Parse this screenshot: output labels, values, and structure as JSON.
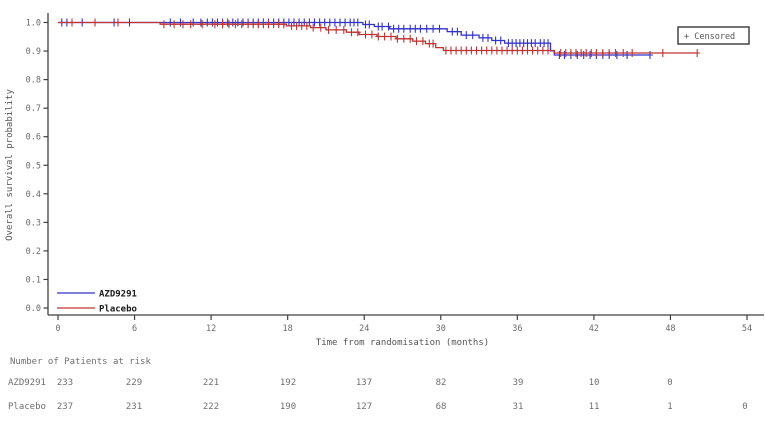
{
  "colors": {
    "azd9291": "#3333cc",
    "placebo": "#c03333",
    "axis": "#404040",
    "tick_text": "#6b6b6b",
    "risk_text": "#6f6f6f",
    "legend_text": "#1a1a1a",
    "censor_box_border": "#444444"
  },
  "chart_data": {
    "type": "line",
    "subtype": "kaplan-meier-step",
    "title": "",
    "xlabel": "Time from randomisation (months)",
    "ylabel": "Overall survival probability",
    "xlim": [
      0,
      54
    ],
    "xticks": [
      0,
      6,
      12,
      18,
      24,
      30,
      36,
      42,
      48,
      54
    ],
    "ylim": [
      0.0,
      1.0
    ],
    "yticks": [
      0.0,
      0.1,
      0.2,
      0.3,
      0.4,
      0.5,
      0.6,
      0.7,
      0.8,
      0.9,
      1.0
    ],
    "grid": false,
    "legend_position": "inside-bottom-left",
    "censored_marker_label": "+ Censored",
    "series": [
      {
        "name": "AZD9291",
        "color": "#3333cc",
        "steps": [
          [
            0,
            1.0
          ],
          [
            23.9,
            1.0
          ],
          [
            23.9,
            0.993
          ],
          [
            24.8,
            0.993
          ],
          [
            24.8,
            0.986
          ],
          [
            26.0,
            0.986
          ],
          [
            26.0,
            0.978
          ],
          [
            30.5,
            0.978
          ],
          [
            30.5,
            0.968
          ],
          [
            31.6,
            0.968
          ],
          [
            31.6,
            0.956
          ],
          [
            33.0,
            0.956
          ],
          [
            33.0,
            0.946
          ],
          [
            34.0,
            0.946
          ],
          [
            34.0,
            0.937
          ],
          [
            35.0,
            0.937
          ],
          [
            35.0,
            0.928
          ],
          [
            38.6,
            0.928
          ],
          [
            38.6,
            0.901
          ],
          [
            38.9,
            0.901
          ],
          [
            38.9,
            0.886
          ],
          [
            46.4,
            0.886
          ]
        ],
        "censor_months": [
          0.3,
          0.7,
          1.9,
          4.4,
          5.6,
          8.8,
          9.6,
          10.6,
          11.2,
          11.7,
          12.1,
          12.5,
          12.9,
          13.3,
          13.7,
          14.1,
          14.5,
          14.9,
          15.3,
          15.7,
          16.1,
          16.5,
          16.9,
          17.3,
          17.7,
          18.1,
          18.5,
          18.9,
          19.3,
          19.7,
          20.1,
          20.5,
          20.9,
          21.3,
          21.7,
          22.1,
          22.5,
          22.9,
          23.2,
          23.5,
          24.1,
          24.4,
          25.1,
          25.4,
          25.9,
          26.3,
          26.7,
          27.1,
          27.6,
          28.0,
          28.4,
          28.9,
          29.4,
          29.9,
          30.9,
          31.3,
          32.0,
          32.5,
          33.3,
          33.7,
          34.3,
          34.7,
          35.3,
          35.6,
          35.9,
          36.2,
          36.5,
          36.8,
          37.1,
          37.4,
          37.8,
          38.1,
          38.4,
          39.3,
          39.7,
          40.2,
          40.7,
          41.2,
          41.7,
          42.2,
          42.7,
          43.2,
          43.8,
          44.6,
          46.4
        ]
      },
      {
        "name": "Placebo",
        "color": "#c03333",
        "steps": [
          [
            0,
            1.0
          ],
          [
            8.0,
            1.0
          ],
          [
            8.0,
            0.994
          ],
          [
            17.9,
            0.994
          ],
          [
            17.9,
            0.988
          ],
          [
            19.8,
            0.988
          ],
          [
            19.8,
            0.982
          ],
          [
            21.0,
            0.982
          ],
          [
            21.0,
            0.974
          ],
          [
            22.6,
            0.974
          ],
          [
            22.6,
            0.966
          ],
          [
            23.6,
            0.966
          ],
          [
            23.6,
            0.958
          ],
          [
            25.0,
            0.958
          ],
          [
            25.0,
            0.951
          ],
          [
            26.5,
            0.951
          ],
          [
            26.5,
            0.943
          ],
          [
            27.8,
            0.943
          ],
          [
            27.8,
            0.935
          ],
          [
            28.8,
            0.935
          ],
          [
            28.8,
            0.926
          ],
          [
            29.6,
            0.926
          ],
          [
            29.6,
            0.912
          ],
          [
            30.2,
            0.912
          ],
          [
            30.2,
            0.902
          ],
          [
            38.9,
            0.902
          ],
          [
            38.9,
            0.893
          ],
          [
            50.1,
            0.893
          ]
        ],
        "censor_months": [
          1.1,
          2.9,
          4.7,
          8.3,
          9.1,
          9.8,
          10.4,
          11.3,
          12.3,
          12.9,
          13.4,
          13.9,
          14.4,
          14.9,
          15.3,
          15.7,
          16.1,
          16.5,
          16.9,
          17.3,
          17.7,
          18.3,
          18.7,
          19.1,
          19.5,
          20.0,
          20.6,
          21.2,
          21.8,
          22.4,
          23.0,
          23.5,
          24.1,
          24.6,
          25.1,
          25.6,
          26.1,
          26.6,
          27.1,
          27.6,
          28.1,
          28.6,
          29.1,
          29.4,
          30.4,
          30.8,
          31.2,
          31.6,
          32.0,
          32.4,
          32.8,
          33.2,
          33.6,
          34.0,
          34.4,
          34.8,
          35.2,
          35.6,
          36.0,
          36.4,
          36.8,
          37.2,
          37.6,
          38.0,
          38.4,
          39.4,
          39.8,
          40.2,
          40.6,
          41.0,
          41.4,
          41.8,
          42.2,
          42.7,
          43.2,
          43.7,
          44.3,
          45.0,
          47.4,
          50.1
        ]
      }
    ]
  },
  "legend": {
    "items": [
      {
        "label": "AZD9291",
        "color": "#3333cc"
      },
      {
        "label": "Placebo",
        "color": "#c03333"
      }
    ]
  },
  "censor_box": {
    "label": "+ Censored"
  },
  "risk_table": {
    "title": "Number of Patients at risk",
    "rows": [
      {
        "label": "AZD9291",
        "values": [
          "233",
          "229",
          "221",
          "192",
          "137",
          "82",
          "39",
          "10",
          "0",
          ""
        ]
      },
      {
        "label": "Placebo",
        "values": [
          "237",
          "231",
          "222",
          "190",
          "127",
          "68",
          "31",
          "11",
          "1",
          "0"
        ]
      }
    ]
  }
}
